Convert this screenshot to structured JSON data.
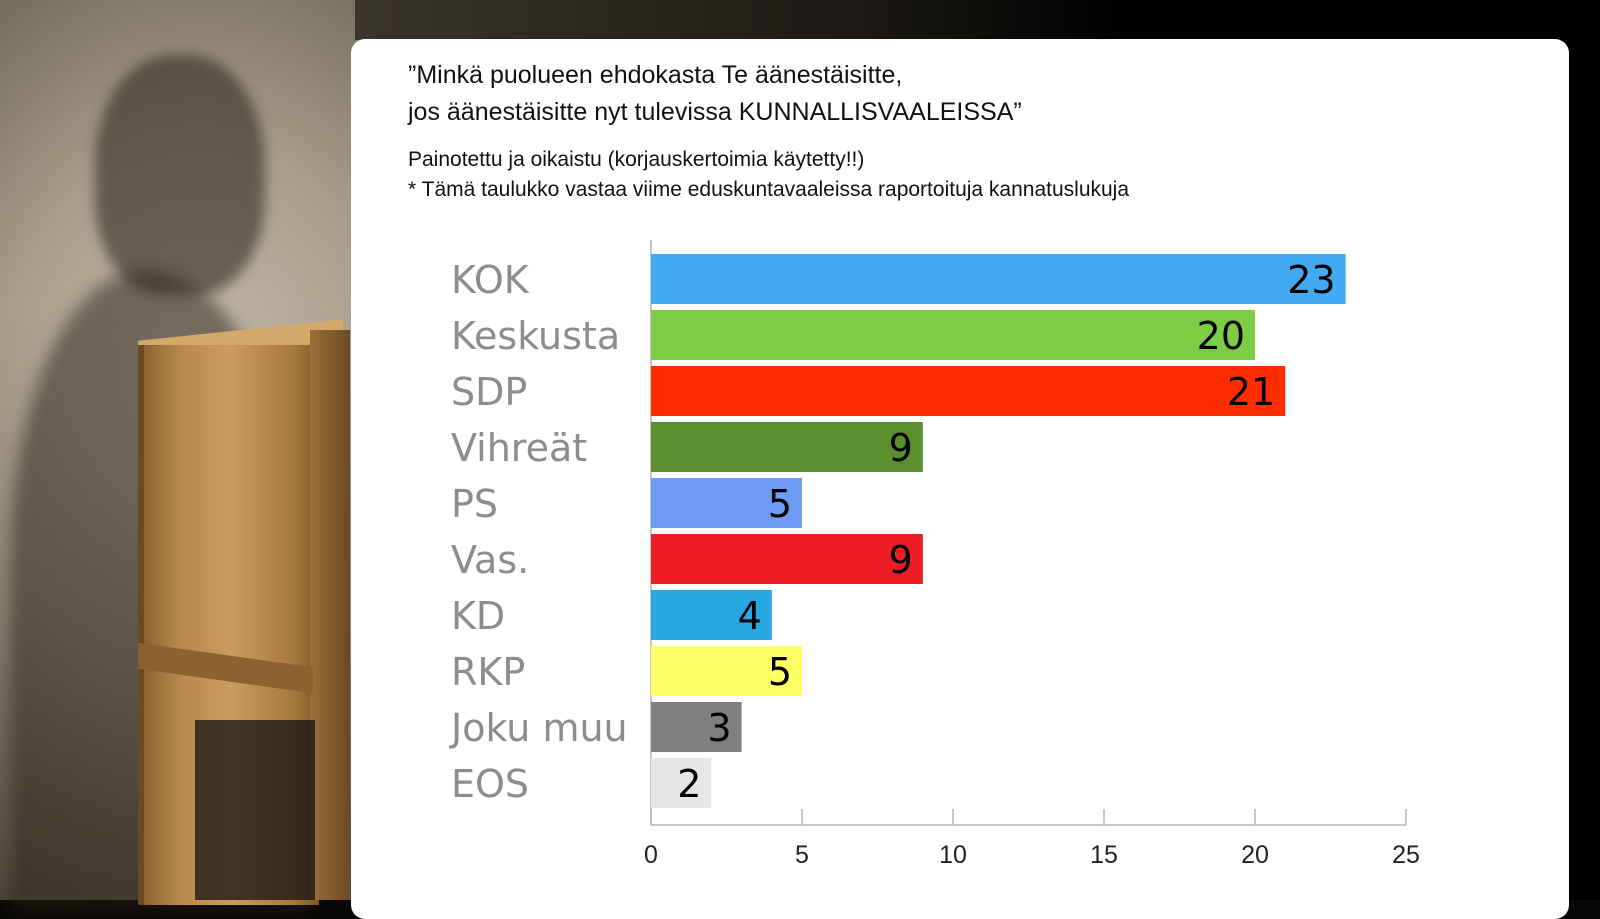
{
  "title_lines": [
    "”Minkä puolueen ehdokasta Te äänestäisitte,",
    "jos äänestäisitte nyt tulevissa KUNNALLISVAALEISSA”"
  ],
  "subtitle_lines": [
    "Painotettu ja oikaistu (korjauskertoimia käytetty!!)",
    "* Tämä taulukko vastaa viime eduskuntavaaleissa raportoituja kannatuslukuja"
  ],
  "chart_data": {
    "type": "bar",
    "orientation": "horizontal",
    "categories": [
      "KOK",
      "Keskusta",
      "SDP",
      "Vihreät",
      "PS",
      "Vas.",
      "KD",
      "RKP",
      "Joku muu",
      "EOS"
    ],
    "values": [
      23,
      20,
      21,
      9,
      5,
      9,
      4,
      5,
      3,
      2
    ],
    "colors": [
      "#42a9f2",
      "#7ccc45",
      "#ff2e00",
      "#5b8f2e",
      "#6e9cf5",
      "#ee1c24",
      "#27a8e0",
      "#ffff66",
      "#7f7f7f",
      "#e6e6e6"
    ],
    "xlim": [
      0,
      25
    ],
    "xticks": [
      0,
      5,
      10,
      15,
      20,
      25
    ],
    "grid": false,
    "data_labels": true,
    "category_label_color": "#8c8c8c",
    "axis_color": "#b3b3b3"
  }
}
